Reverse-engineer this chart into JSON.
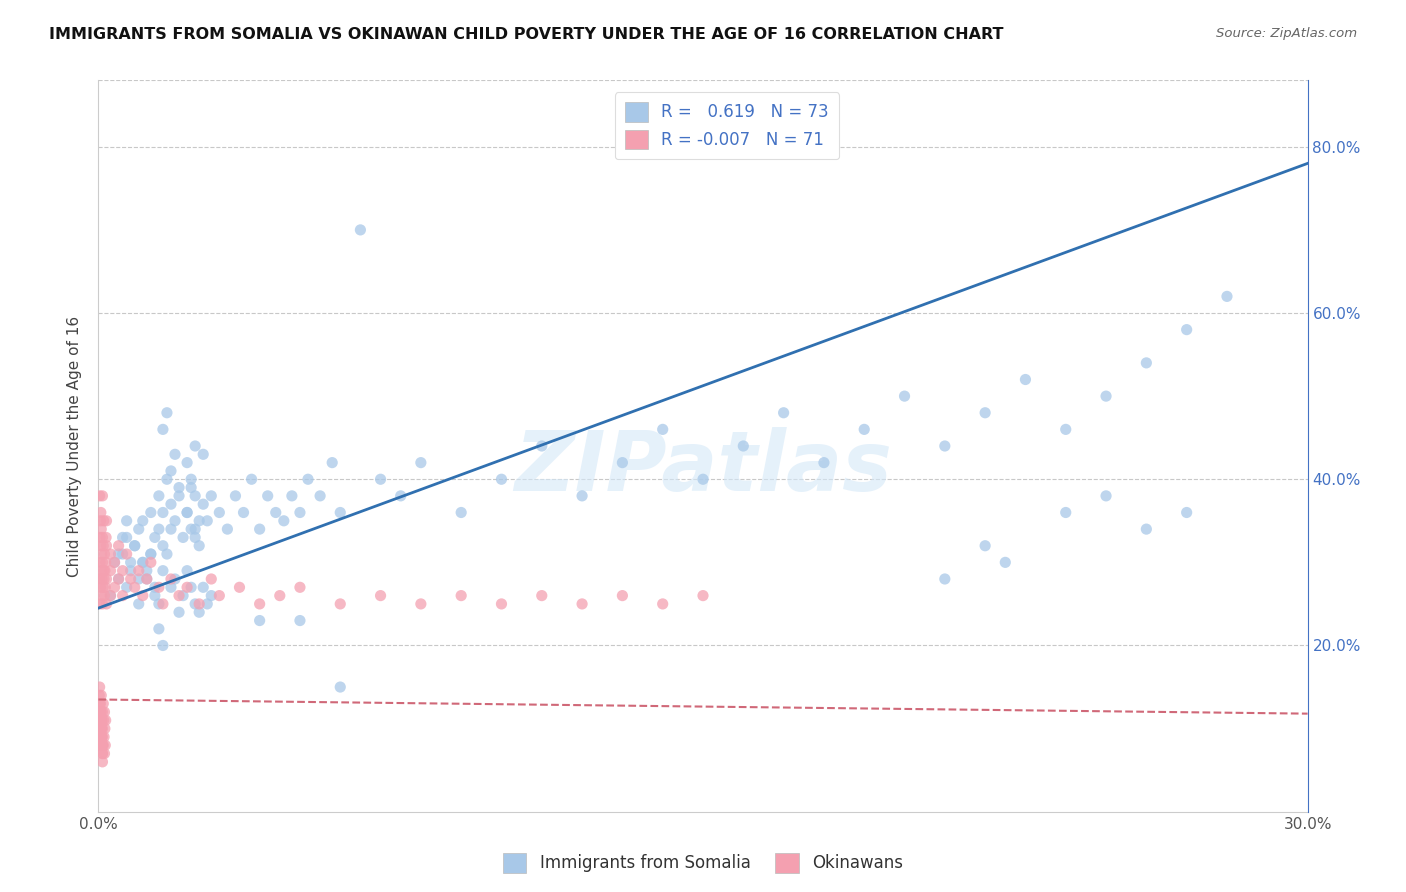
{
  "title": "IMMIGRANTS FROM SOMALIA VS OKINAWAN CHILD POVERTY UNDER THE AGE OF 16 CORRELATION CHART",
  "source": "Source: ZipAtlas.com",
  "ylabel": "Child Poverty Under the Age of 16",
  "legend_label1": "Immigrants from Somalia",
  "legend_label2": "Okinawans",
  "watermark": "ZIPatlas",
  "blue_color": "#a8c8e8",
  "pink_color": "#f4a0b0",
  "blue_line_color": "#3070b0",
  "pink_line_color": "#d06878",
  "title_color": "#111111",
  "source_color": "#666666",
  "right_axis_color": "#4472c4",
  "somalia_scatter_x": [
    0.003,
    0.004,
    0.005,
    0.006,
    0.007,
    0.007,
    0.008,
    0.009,
    0.01,
    0.01,
    0.011,
    0.011,
    0.012,
    0.013,
    0.013,
    0.014,
    0.014,
    0.015,
    0.015,
    0.016,
    0.016,
    0.017,
    0.018,
    0.018,
    0.019,
    0.02,
    0.021,
    0.022,
    0.023,
    0.024,
    0.025,
    0.026,
    0.027,
    0.028,
    0.03,
    0.032,
    0.034,
    0.036,
    0.038,
    0.04,
    0.042,
    0.044,
    0.046,
    0.048,
    0.05,
    0.052,
    0.055,
    0.058,
    0.06,
    0.065,
    0.07,
    0.075,
    0.08,
    0.09,
    0.1,
    0.11,
    0.12,
    0.13,
    0.14,
    0.15,
    0.16,
    0.17,
    0.18,
    0.19,
    0.2,
    0.21,
    0.22,
    0.23,
    0.24,
    0.25,
    0.26,
    0.27,
    0.28
  ],
  "somalia_scatter_y": [
    0.26,
    0.3,
    0.28,
    0.31,
    0.27,
    0.33,
    0.29,
    0.32,
    0.28,
    0.34,
    0.3,
    0.35,
    0.29,
    0.31,
    0.36,
    0.33,
    0.27,
    0.34,
    0.38,
    0.32,
    0.36,
    0.4,
    0.34,
    0.37,
    0.35,
    0.38,
    0.33,
    0.36,
    0.39,
    0.34,
    0.32,
    0.37,
    0.35,
    0.38,
    0.36,
    0.34,
    0.38,
    0.36,
    0.4,
    0.34,
    0.38,
    0.36,
    0.35,
    0.38,
    0.36,
    0.4,
    0.38,
    0.42,
    0.36,
    0.7,
    0.4,
    0.38,
    0.42,
    0.36,
    0.4,
    0.44,
    0.38,
    0.42,
    0.46,
    0.4,
    0.44,
    0.48,
    0.42,
    0.46,
    0.5,
    0.44,
    0.48,
    0.52,
    0.46,
    0.5,
    0.54,
    0.58,
    0.62
  ],
  "somalia_extra_x": [
    0.005,
    0.006,
    0.007,
    0.008,
    0.009,
    0.01,
    0.011,
    0.012,
    0.013,
    0.014,
    0.015,
    0.016,
    0.017,
    0.018,
    0.019,
    0.02,
    0.021,
    0.022,
    0.023,
    0.024,
    0.025,
    0.026,
    0.027,
    0.028,
    0.022,
    0.023,
    0.024,
    0.025,
    0.023,
    0.024,
    0.018,
    0.019,
    0.02,
    0.022,
    0.024,
    0.026,
    0.016,
    0.017,
    0.04,
    0.05,
    0.24,
    0.25,
    0.26,
    0.27,
    0.22,
    0.225,
    0.21,
    0.015,
    0.016,
    0.06
  ],
  "somalia_extra_y": [
    0.31,
    0.33,
    0.35,
    0.3,
    0.32,
    0.25,
    0.3,
    0.28,
    0.31,
    0.26,
    0.25,
    0.29,
    0.31,
    0.27,
    0.28,
    0.24,
    0.26,
    0.29,
    0.27,
    0.25,
    0.24,
    0.27,
    0.25,
    0.26,
    0.36,
    0.34,
    0.33,
    0.35,
    0.4,
    0.38,
    0.41,
    0.43,
    0.39,
    0.42,
    0.44,
    0.43,
    0.46,
    0.48,
    0.23,
    0.23,
    0.36,
    0.38,
    0.34,
    0.36,
    0.32,
    0.3,
    0.28,
    0.22,
    0.2,
    0.15
  ],
  "okinawan_scatter_x": [
    0.0002,
    0.0003,
    0.0003,
    0.0004,
    0.0004,
    0.0005,
    0.0005,
    0.0006,
    0.0006,
    0.0007,
    0.0007,
    0.0008,
    0.0008,
    0.0009,
    0.001,
    0.001,
    0.001,
    0.001,
    0.0012,
    0.0012,
    0.0013,
    0.0013,
    0.0014,
    0.0015,
    0.0015,
    0.0016,
    0.0017,
    0.0018,
    0.0019,
    0.002,
    0.002,
    0.002,
    0.002,
    0.003,
    0.003,
    0.003,
    0.004,
    0.004,
    0.005,
    0.005,
    0.006,
    0.006,
    0.007,
    0.008,
    0.009,
    0.01,
    0.011,
    0.012,
    0.013,
    0.015,
    0.016,
    0.018,
    0.02,
    0.022,
    0.025,
    0.028,
    0.03,
    0.035,
    0.04,
    0.045,
    0.05,
    0.06,
    0.07,
    0.08,
    0.09,
    0.1,
    0.11,
    0.12,
    0.13,
    0.14,
    0.15
  ],
  "okinawan_scatter_y": [
    0.28,
    0.25,
    0.38,
    0.33,
    0.3,
    0.35,
    0.27,
    0.32,
    0.36,
    0.29,
    0.34,
    0.26,
    0.31,
    0.28,
    0.3,
    0.33,
    0.25,
    0.38,
    0.27,
    0.32,
    0.29,
    0.35,
    0.28,
    0.26,
    0.31,
    0.29,
    0.27,
    0.3,
    0.33,
    0.25,
    0.28,
    0.32,
    0.35,
    0.26,
    0.29,
    0.31,
    0.27,
    0.3,
    0.28,
    0.32,
    0.26,
    0.29,
    0.31,
    0.28,
    0.27,
    0.29,
    0.26,
    0.28,
    0.3,
    0.27,
    0.25,
    0.28,
    0.26,
    0.27,
    0.25,
    0.28,
    0.26,
    0.27,
    0.25,
    0.26,
    0.27,
    0.25,
    0.26,
    0.25,
    0.26,
    0.25,
    0.26,
    0.25,
    0.26,
    0.25,
    0.26
  ],
  "okinawan_low_x": [
    0.0002,
    0.0003,
    0.0003,
    0.0004,
    0.0004,
    0.0005,
    0.0005,
    0.0006,
    0.0007,
    0.0007,
    0.0008,
    0.0009,
    0.001,
    0.001,
    0.001,
    0.0012,
    0.0013,
    0.0014,
    0.0015,
    0.0016,
    0.0017,
    0.0018,
    0.001,
    0.0009,
    0.0008,
    0.0007,
    0.0006,
    0.0005,
    0.0004,
    0.0003,
    0.001,
    0.0012,
    0.0015,
    0.0005,
    0.0003,
    0.0002,
    0.0004,
    0.0006,
    0.0008,
    0.001
  ],
  "okinawan_low_y": [
    0.12,
    0.1,
    0.15,
    0.08,
    0.11,
    0.13,
    0.09,
    0.12,
    0.1,
    0.14,
    0.11,
    0.09,
    0.12,
    0.08,
    0.1,
    0.13,
    0.11,
    0.09,
    0.12,
    0.1,
    0.08,
    0.11,
    0.07,
    0.09,
    0.11,
    0.1,
    0.08,
    0.12,
    0.09,
    0.11,
    0.06,
    0.08,
    0.07,
    0.1,
    0.13,
    0.14,
    0.11,
    0.09,
    0.08,
    0.07
  ],
  "xlim": [
    0.0,
    0.3
  ],
  "ylim": [
    0.0,
    0.88
  ],
  "xticks": [
    0.0,
    0.05,
    0.1,
    0.15,
    0.2,
    0.25,
    0.3
  ],
  "right_ytick_vals": [
    0.8,
    0.6,
    0.4,
    0.2
  ],
  "right_ytick_labels": [
    "80.0%",
    "60.0%",
    "40.0%",
    "20.0%"
  ],
  "blue_line_x0": 0.0,
  "blue_line_y0": 0.245,
  "blue_line_x1": 0.3,
  "blue_line_y1": 0.78,
  "pink_line_x0": 0.0,
  "pink_line_y0": 0.135,
  "pink_line_x1": 0.3,
  "pink_line_y1": 0.118
}
